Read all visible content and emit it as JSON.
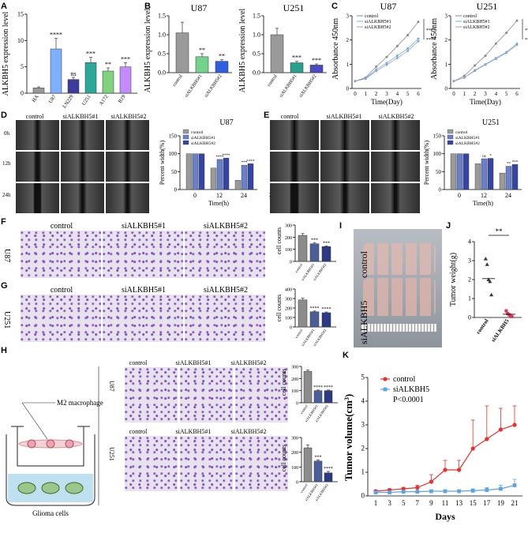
{
  "panels": {
    "A": {
      "label": "A",
      "ylabel": "ALKBH5 expression level",
      "chart_data": {
        "type": "bar",
        "categories": [
          "HA",
          "U87",
          "LN229",
          "U251",
          "A172",
          "B19"
        ],
        "values": [
          1.0,
          8.4,
          2.6,
          5.8,
          4.2,
          5.0
        ],
        "errors": [
          0.2,
          2.0,
          0.4,
          1.0,
          0.6,
          0.8
        ],
        "sig": [
          "",
          "****",
          "ns",
          "***",
          "**",
          "***"
        ],
        "ylim": [
          0,
          15
        ],
        "yticks": [
          0,
          5,
          10,
          15
        ],
        "colors": [
          "#9a9a9a",
          "#7fb0ff",
          "#3c3c9e",
          "#2ba89a",
          "#7fd37f",
          "#c38bff"
        ]
      }
    },
    "B": {
      "label": "B",
      "ylabel": "ALKBH5 expression level",
      "charts": [
        {
          "title": "U87",
          "chart_data": {
            "type": "bar",
            "categories": [
              "control",
              "siALKBH5#1",
              "siALKBH5#2"
            ],
            "values": [
              1.05,
              0.42,
              0.3
            ],
            "errors": [
              0.28,
              0.08,
              0.04
            ],
            "sig": [
              "",
              "**",
              "**"
            ],
            "ylim": [
              0,
              1.5
            ],
            "yticks": [
              "0.0",
              "0.5",
              "1.0",
              "1.5"
            ],
            "colors": [
              "#9a9a9a",
              "#73d38a",
              "#2e5fe0"
            ]
          }
        },
        {
          "title": "U251",
          "chart_data": {
            "type": "bar",
            "categories": [
              "control",
              "siALKBH5#1",
              "siALKBH5#2"
            ],
            "values": [
              1.0,
              0.26,
              0.2
            ],
            "errors": [
              0.17,
              0.04,
              0.03
            ],
            "sig": [
              "",
              "***",
              "***"
            ],
            "ylim": [
              0,
              1.5
            ],
            "yticks": [
              "0.0",
              "0.5",
              "1.0",
              "1.5"
            ],
            "colors": [
              "#9a9a9a",
              "#2aa08f",
              "#4a4ac2"
            ]
          }
        }
      ]
    },
    "C": {
      "label": "C",
      "ylabel": "Absorbance 450nm",
      "xlabel": "Time(Day)",
      "legend": [
        "control",
        "siALKBH5#1",
        "siALKBH5#2"
      ],
      "sig": "****",
      "charts": [
        {
          "title": "U87",
          "chart_data": {
            "type": "line",
            "x": [
              0,
              1,
              2,
              3,
              4,
              5,
              6
            ],
            "series": [
              {
                "name": "control",
                "values": [
                  0.3,
                  0.45,
                  0.9,
                  1.3,
                  1.75,
                  2.2,
                  2.75
                ]
              },
              {
                "name": "siALKBH5#1",
                "values": [
                  0.3,
                  0.42,
                  0.78,
                  1.05,
                  1.35,
                  1.65,
                  2.05
                ]
              },
              {
                "name": "siALKBH5#2",
                "values": [
                  0.3,
                  0.4,
                  0.72,
                  0.98,
                  1.25,
                  1.55,
                  1.95
                ]
              }
            ],
            "ylim": [
              0,
              3
            ],
            "yticks": [
              0,
              1,
              2,
              3
            ]
          }
        },
        {
          "title": "U251",
          "chart_data": {
            "type": "line",
            "x": [
              0,
              1,
              2,
              3,
              4,
              5,
              6
            ],
            "series": [
              {
                "name": "control",
                "values": [
                  0.3,
                  0.52,
                  0.95,
                  1.35,
                  1.85,
                  2.3,
                  2.8
                ]
              },
              {
                "name": "siALKBH5#1",
                "values": [
                  0.3,
                  0.45,
                  0.75,
                  1.0,
                  1.25,
                  1.5,
                  1.85
                ]
              },
              {
                "name": "siALKBH5#2",
                "values": [
                  0.3,
                  0.45,
                  0.73,
                  0.98,
                  1.22,
                  1.47,
                  1.8
                ]
              }
            ],
            "ylim": [
              0,
              3
            ],
            "yticks": [
              0,
              1,
              2,
              3
            ]
          }
        }
      ]
    },
    "D": {
      "label": "D",
      "cols": [
        "control",
        "siALKBH5#1",
        "siALKBH5#2"
      ],
      "rows": [
        "0h",
        "12h",
        "24h"
      ],
      "chart": {
        "title": "U87",
        "ylabel": "Percent width(%)",
        "xlabel": "Time(h)",
        "legend": [
          "control",
          "siALKBH5#1",
          "siALKBH5#2"
        ],
        "chart_data": {
          "type": "bar",
          "categories": [
            "0",
            "12",
            "24"
          ],
          "series": [
            {
              "name": "control",
              "values": [
                100,
                60,
                26
              ]
            },
            {
              "name": "siALKBH5#1",
              "values": [
                100,
                84,
                68
              ]
            },
            {
              "name": "siALKBH5#2",
              "values": [
                100,
                88,
                72
              ]
            }
          ],
          "sig": [
            [
              "",
              "",
              ""
            ],
            [
              "",
              "****",
              "****"
            ],
            [
              "",
              "***",
              "****"
            ]
          ],
          "ylim": [
            0,
            150
          ],
          "yticks": [
            0,
            50,
            100,
            150
          ]
        }
      }
    },
    "E": {
      "label": "E",
      "cols": [
        "control",
        "siALKBH5#1",
        "siALKBH5#2"
      ],
      "rows": [
        "0h",
        "12h",
        "24h"
      ],
      "chart": {
        "title": "U251",
        "ylabel": "Percent width(%)",
        "xlabel": "Time(h)",
        "legend": [
          "control",
          "siALKBH5#1",
          "siALKBH5#2"
        ],
        "chart_data": {
          "type": "bar",
          "categories": [
            "0",
            "12",
            "24"
          ],
          "series": [
            {
              "name": "control",
              "values": [
                100,
                72,
                46
              ]
            },
            {
              "name": "siALKBH5#1",
              "values": [
                100,
                86,
                65
              ]
            },
            {
              "name": "siALKBH5#2",
              "values": [
                100,
                87,
                70
              ]
            }
          ],
          "sig": [
            [
              "",
              "",
              ""
            ],
            [
              "",
              "ns",
              "*"
            ],
            [
              "",
              "**",
              "***"
            ]
          ],
          "ylim": [
            0,
            150
          ],
          "yticks": [
            0,
            50,
            100,
            150
          ]
        }
      }
    },
    "F": {
      "label": "F",
      "cols": [
        "control",
        "siALKBH5#1",
        "siALKBH5#2"
      ],
      "rowlabel": "U87",
      "chart": {
        "ylabel": "cell counts",
        "chart_data": {
          "type": "bar",
          "categories": [
            "control",
            "siALKBH5#1",
            "siALKBH5#2"
          ],
          "values": [
            215,
            145,
            122
          ],
          "errors": [
            15,
            8,
            6
          ],
          "sig": [
            "",
            "***",
            "***"
          ],
          "ylim": [
            0,
            300
          ],
          "yticks": [
            0,
            100,
            200,
            300
          ]
        }
      }
    },
    "G": {
      "label": "G",
      "cols": [
        "control",
        "siALKBH5#1",
        "siALKBH5#2"
      ],
      "rowlabel": "U251",
      "chart": {
        "ylabel": "cell counts",
        "chart_data": {
          "type": "bar",
          "categories": [
            "control",
            "siALKBH5#1",
            "siALKBH5#2"
          ],
          "values": [
            285,
            160,
            150
          ],
          "errors": [
            18,
            8,
            8
          ],
          "sig": [
            "",
            "****",
            "****"
          ],
          "ylim": [
            0,
            400
          ],
          "yticks": [
            0,
            100,
            200,
            300,
            400
          ]
        }
      }
    },
    "H": {
      "label": "H",
      "macro": "M2 macrophage",
      "glioma": "Glioma cells",
      "cols": [
        "control",
        "siALKBH5#1",
        "siALKBH5#2"
      ],
      "rows": [
        {
          "name": "U87",
          "chart_data": {
            "type": "bar",
            "categories": [
              "control",
              "siALKBH5#1",
              "siALKBH5#2"
            ],
            "values": [
              260,
              100,
              100
            ],
            "errors": [
              10,
              5,
              5
            ],
            "sig": [
              "",
              "****",
              "****"
            ],
            "ylim": [
              0,
              300
            ],
            "yticks": [
              0,
              100,
              200,
              300
            ]
          }
        },
        {
          "name": "U251",
          "chart_data": {
            "type": "bar",
            "categories": [
              "control",
              "siALKBH5#1",
              "siALKBH5#2"
            ],
            "values": [
              230,
              140,
              60
            ],
            "errors": [
              20,
              8,
              10
            ],
            "sig": [
              "",
              "***",
              "****"
            ],
            "ylim": [
              0,
              300
            ],
            "yticks": [
              0,
              100,
              200,
              300
            ]
          }
        }
      ],
      "ylabel": "cell counts"
    },
    "I": {
      "label": "I",
      "top": "control",
      "bottom": "siALKBH5"
    },
    "J": {
      "label": "J",
      "ylabel": "Tumor weight(g)",
      "sig": "**",
      "chart_data": {
        "type": "scatter",
        "categories": [
          "control",
          "siALKBH5"
        ],
        "values": [
          [
            3.1,
            2.8,
            2.0,
            1.9,
            1.2
          ],
          [
            0.35,
            0.2,
            0.15,
            0.1,
            0.05
          ]
        ],
        "means": [
          2.05,
          0.17
        ],
        "ylim": [
          0,
          4
        ],
        "yticks": [
          0,
          1,
          2,
          3,
          4
        ]
      }
    },
    "K": {
      "label": "K",
      "ylabel": "Tumor volume(cm³)",
      "ylabel_base": "Tumor volume(cm",
      "ylabel_sup": "3",
      "ylabel_end": ")",
      "xlabel": "Days",
      "legend": [
        "control",
        "siALKBH5"
      ],
      "pval": "P<0.0001",
      "chart_data": {
        "type": "line",
        "x": [
          1,
          3,
          5,
          7,
          9,
          11,
          13,
          15,
          17,
          19,
          21
        ],
        "series": [
          {
            "name": "control",
            "values": [
              0.2,
              0.25,
              0.3,
              0.35,
              0.6,
              1.1,
              1.1,
              2.0,
              2.4,
              2.8,
              3.0
            ],
            "errors": [
              0.05,
              0.05,
              0.05,
              0.1,
              0.3,
              0.4,
              0.4,
              1.2,
              1.4,
              0.9,
              0.8
            ],
            "color": "#e8302c"
          },
          {
            "name": "siALKBH5",
            "values": [
              0.15,
              0.15,
              0.18,
              0.18,
              0.2,
              0.2,
              0.2,
              0.22,
              0.25,
              0.3,
              0.45
            ],
            "errors": [
              0.05,
              0.05,
              0.05,
              0.05,
              0.05,
              0.05,
              0.05,
              0.08,
              0.1,
              0.15,
              0.25
            ],
            "color": "#5aa3e8"
          }
        ],
        "ylim": [
          0,
          5
        ],
        "yticks": [
          0,
          1,
          2,
          3,
          4,
          5
        ]
      }
    }
  }
}
